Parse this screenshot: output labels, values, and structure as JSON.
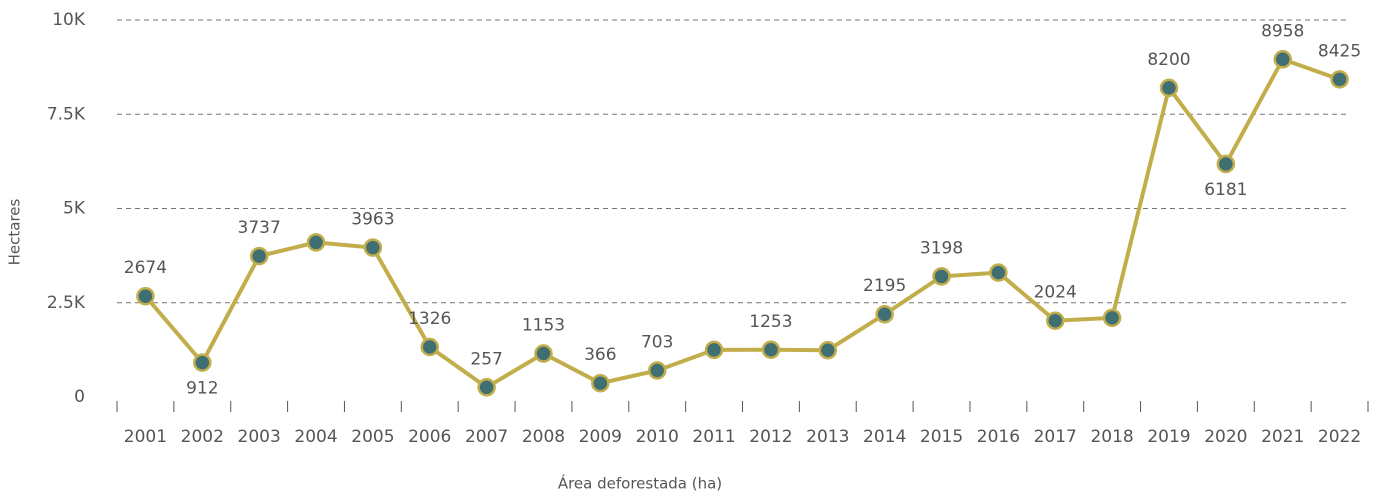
{
  "chart_data": {
    "type": "line",
    "xlabel": "Área deforestada (ha)",
    "ylabel": "Hectares",
    "categories": [
      "2001",
      "2002",
      "2003",
      "2004",
      "2005",
      "2006",
      "2007",
      "2008",
      "2009",
      "2010",
      "2011",
      "2012",
      "2013",
      "2014",
      "2015",
      "2016",
      "2017",
      "2018",
      "2019",
      "2020",
      "2021",
      "2022"
    ],
    "series": [
      {
        "name": "Área deforestada",
        "color": "#c2ad4b",
        "marker_color": "#3f6f73",
        "values": [
          2674,
          912,
          3737,
          4100,
          3963,
          1326,
          257,
          1153,
          366,
          703,
          1250,
          1253,
          1240,
          2195,
          3198,
          3300,
          2024,
          2100,
          8200,
          6181,
          8958,
          8425
        ],
        "value_labels": [
          "2674",
          "912",
          "3737",
          null,
          "3963",
          "1326",
          "257",
          "1153",
          "366",
          "703",
          null,
          "1253",
          null,
          "2195",
          "3198",
          null,
          "2024",
          null,
          "8200",
          "6181",
          "8958",
          "8425"
        ]
      }
    ],
    "ylim": [
      0,
      10000
    ],
    "yticks": [
      0,
      {
        "value": 2500,
        "label": "2.5K"
      },
      {
        "value": 5000,
        "label": "5K"
      },
      {
        "value": 7500,
        "label": "7.5K"
      },
      {
        "value": 10000,
        "label": "10K"
      }
    ],
    "grid": true
  }
}
